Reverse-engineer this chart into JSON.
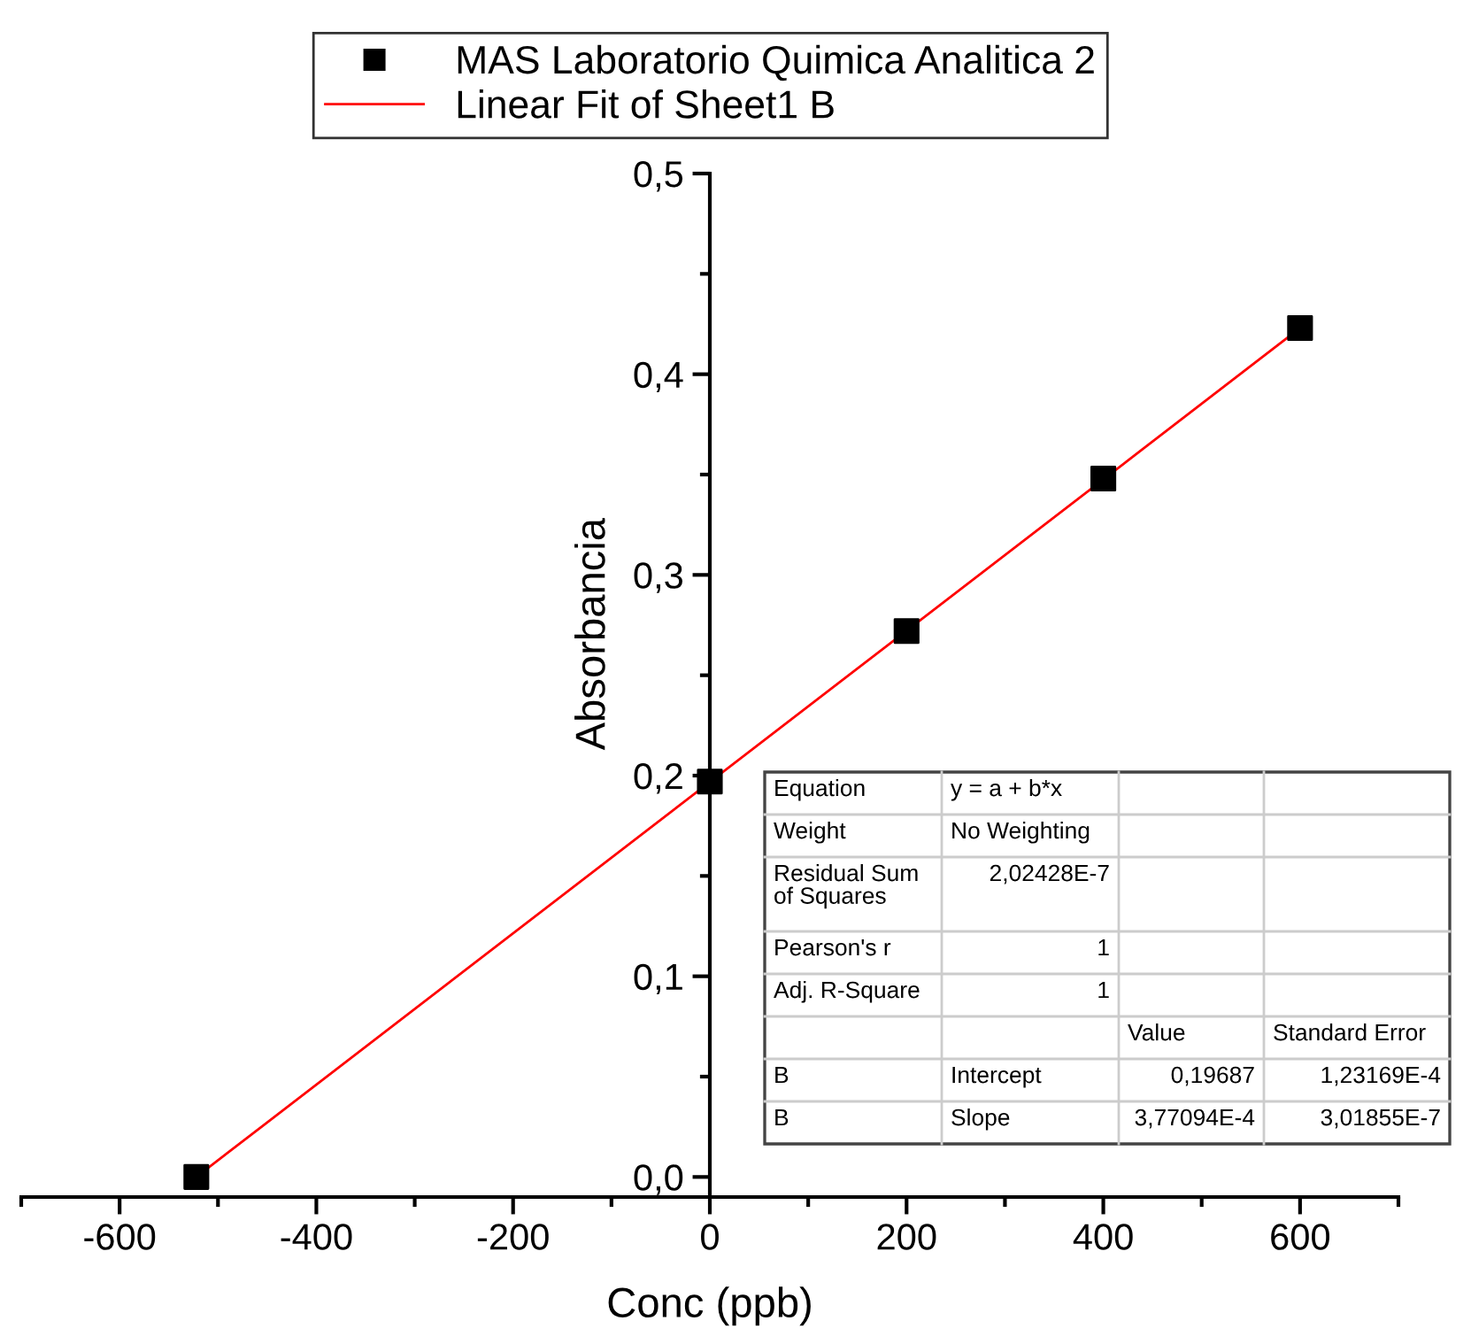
{
  "chart_data": {
    "type": "scatter",
    "xlabel": "Conc (ppb)",
    "ylabel": "Absorbancia",
    "xlim": [
      -700,
      700
    ],
    "ylim": [
      -0.01,
      0.5
    ],
    "xticks": [
      -600,
      -400,
      -200,
      0,
      200,
      400,
      600
    ],
    "yticks": [
      {
        "value": 0,
        "label": "0,0"
      },
      {
        "value": 0.1,
        "label": "0,1"
      },
      {
        "value": 0.2,
        "label": "0,2"
      },
      {
        "value": 0.3,
        "label": "0,3"
      },
      {
        "value": 0.4,
        "label": "0,4"
      },
      {
        "value": 0.5,
        "label": "0,5"
      }
    ],
    "grid": false,
    "legend": "top",
    "series": [
      {
        "name": "MAS Laboratorio Quimica Analitica 2",
        "color": "#000000",
        "marker": "square",
        "x": [
          -522,
          0,
          200,
          400,
          600
        ],
        "values": [
          0.0,
          0.197,
          0.272,
          0.348,
          0.423
        ]
      },
      {
        "name": "Linear Fit of Sheet1 B",
        "type": "line",
        "color": "#ff0000",
        "marker": "none",
        "line_style": "solid",
        "x": [
          -522,
          600
        ],
        "values": [
          0.0,
          0.423
        ]
      }
    ],
    "annotations": [
      "Equation",
      "y = a + b*x",
      "Weight",
      "No Weighting",
      "Residual Sum\nof Squares",
      "2,02428E-7",
      "Pearson's r",
      "1",
      "Adj. R-Square",
      "1",
      "Value",
      "Standard Error",
      "B",
      "Intercept",
      "0,19687",
      "1,23169E-4",
      "B",
      "Slope",
      "3,77094E-4",
      "3,01855E-7"
    ]
  }
}
